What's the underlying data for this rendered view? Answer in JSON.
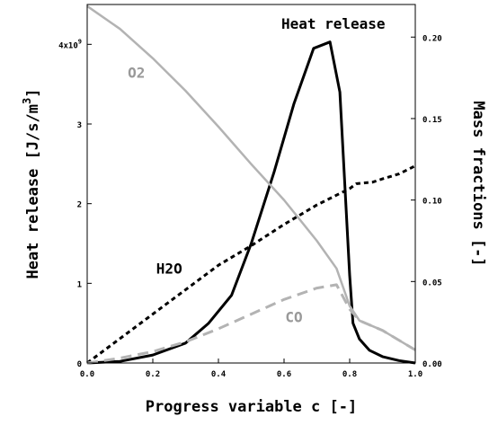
{
  "chart_data": {
    "type": "line",
    "xlabel": "Progress variable c [-]",
    "ylabel_left": "Heat release [J/s/m^3]",
    "ylabel_right": "Mass fractions [-]",
    "xlim": [
      0.0,
      1.0
    ],
    "ylim_left": [
      0,
      4500000000.0
    ],
    "ylim_right": [
      0.0,
      0.22
    ],
    "grid": false,
    "x_ticks": [
      "0.0",
      "0.2",
      "0.4",
      "0.6",
      "0.8",
      "1.0"
    ],
    "y_left_ticks": [
      "0",
      "1",
      "2",
      "3",
      "4x10^9"
    ],
    "y_left_tick_values": [
      0,
      1000000000.0,
      2000000000.0,
      3000000000.0,
      4000000000.0
    ],
    "y_right_ticks": [
      "0.00",
      "0.05",
      "0.10",
      "0.15",
      "0.20"
    ],
    "y_right_tick_values": [
      0.0,
      0.05,
      0.1,
      0.15,
      0.2
    ],
    "series": [
      {
        "name": "Heat release",
        "axis": "left",
        "color": "#000000",
        "dash": "solid",
        "x": [
          0.0,
          0.1,
          0.2,
          0.3,
          0.37,
          0.44,
          0.5,
          0.57,
          0.63,
          0.69,
          0.74,
          0.77,
          0.8,
          0.81,
          0.83,
          0.86,
          0.9,
          0.95,
          1.0
        ],
        "y": [
          0,
          20000000.0,
          100000000.0,
          250000000.0,
          500000000.0,
          850000000.0,
          1500000000.0,
          2400000000.0,
          3250000000.0,
          3950000000.0,
          4030000000.0,
          3400000000.0,
          1100000000.0,
          500000000.0,
          300000000.0,
          160000000.0,
          80000000.0,
          30000000.0,
          0
        ]
      },
      {
        "name": "O2",
        "axis": "right",
        "color": "#b3b3b3",
        "dash": "solid",
        "x": [
          0.0,
          0.1,
          0.2,
          0.3,
          0.4,
          0.5,
          0.6,
          0.7,
          0.76,
          0.8,
          0.83,
          0.9,
          1.0
        ],
        "y": [
          0.219,
          0.205,
          0.187,
          0.167,
          0.145,
          0.122,
          0.1,
          0.075,
          0.058,
          0.035,
          0.026,
          0.02,
          0.008
        ]
      },
      {
        "name": "H2O",
        "axis": "right",
        "color": "#000000",
        "dash": "dotted",
        "x": [
          0.0,
          0.1,
          0.2,
          0.3,
          0.4,
          0.5,
          0.6,
          0.7,
          0.8,
          0.82,
          0.87,
          0.9,
          0.95,
          1.0
        ],
        "y": [
          0.0,
          0.015,
          0.03,
          0.045,
          0.06,
          0.072,
          0.085,
          0.097,
          0.107,
          0.11,
          0.111,
          0.113,
          0.116,
          0.121
        ]
      },
      {
        "name": "CO",
        "axis": "right",
        "color": "#b3b3b3",
        "dash": "dashed",
        "x": [
          0.0,
          0.1,
          0.2,
          0.3,
          0.4,
          0.5,
          0.6,
          0.7,
          0.76,
          0.8,
          0.83,
          0.9,
          1.0
        ],
        "y": [
          0.0,
          0.003,
          0.007,
          0.013,
          0.021,
          0.03,
          0.039,
          0.046,
          0.048,
          0.033,
          0.026,
          0.02,
          0.008
        ]
      }
    ],
    "annotations": [
      {
        "text": "Heat release",
        "x": 0.75,
        "y_right": 0.205,
        "color": "#000000"
      },
      {
        "text": "O2",
        "x": 0.15,
        "y_right": 0.175,
        "color": "#999999"
      },
      {
        "text": "H2O",
        "x": 0.25,
        "y_right": 0.055,
        "color": "#000000"
      },
      {
        "text": "CO",
        "x": 0.63,
        "y_right": 0.025,
        "color": "#999999"
      }
    ]
  }
}
